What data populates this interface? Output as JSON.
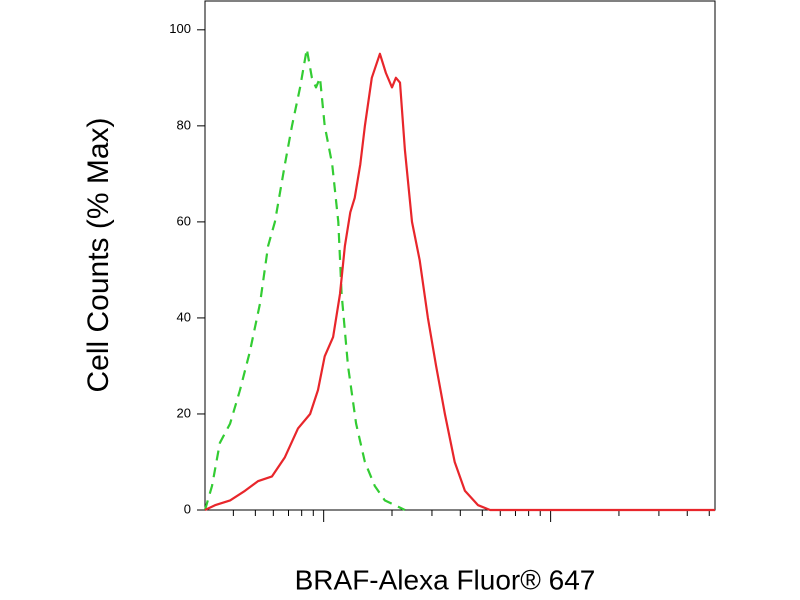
{
  "chart_data": {
    "type": "line",
    "xlabel": "BRAF-Alexa Fluor® 647",
    "ylabel": "Cell Counts (% Max)",
    "xscale": "log",
    "xlim": [
      3,
      530
    ],
    "ylim": [
      0,
      106
    ],
    "yticks": [
      0,
      20,
      40,
      60,
      80,
      100
    ],
    "xticks": [
      4,
      5,
      6,
      7,
      8,
      9,
      10,
      20,
      30,
      40,
      50,
      60,
      70,
      80,
      90,
      100,
      200,
      300,
      400,
      500
    ],
    "series": [
      {
        "color": "#33cc33",
        "dashed": true,
        "x": [
          3.0,
          3.22,
          3.49,
          3.87,
          4.28,
          4.73,
          5.24,
          5.69,
          6.1,
          6.75,
          7.25,
          7.87,
          8.43,
          8.87,
          9.25,
          9.63,
          10.1,
          10.9,
          11.6,
          12.0,
          12.8,
          13.9,
          15.2,
          16.8,
          18.6,
          20.6,
          22.8
        ],
        "values": [
          0,
          5,
          14,
          18,
          25,
          33,
          43,
          55,
          60,
          72,
          80,
          88,
          96,
          90,
          88,
          90,
          80,
          72,
          60,
          45,
          30,
          18,
          10,
          5,
          2,
          1,
          0
        ]
      },
      {
        "color": "#e8262b",
        "dashed": false,
        "x": [
          3.0,
          3.32,
          3.87,
          4.5,
          5.13,
          5.92,
          6.75,
          7.71,
          8.71,
          9.44,
          10.1,
          11.0,
          11.8,
          12.4,
          13.1,
          13.7,
          14.5,
          15.2,
          16.3,
          17.7,
          18.8,
          20.0,
          20.8,
          21.7,
          22.8,
          24.5,
          26.5,
          28.8,
          31.3,
          34.2,
          37.8,
          41.9,
          47.9,
          54.1,
          530
        ],
        "values": [
          0,
          1,
          2,
          4,
          6,
          7,
          11,
          17,
          20,
          25,
          32,
          36,
          45,
          55,
          62,
          65,
          72,
          80,
          90,
          95,
          91,
          88,
          90,
          89,
          75,
          60,
          52,
          40,
          30,
          20,
          10,
          4,
          1,
          0,
          0
        ]
      }
    ]
  }
}
